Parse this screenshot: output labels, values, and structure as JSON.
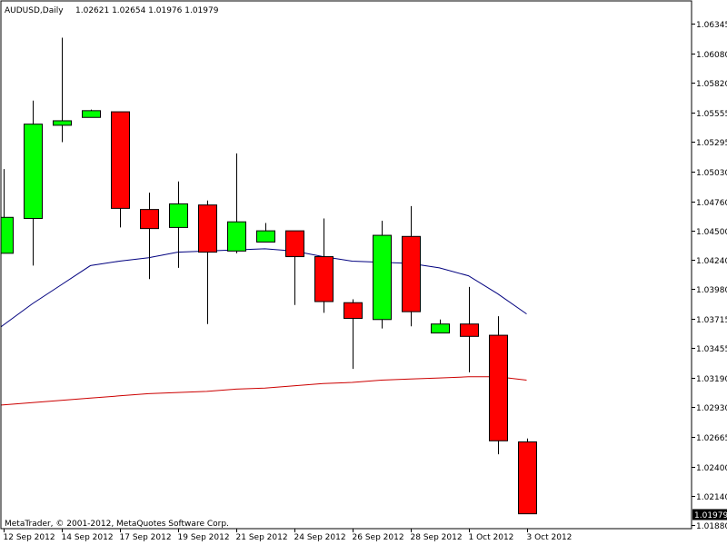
{
  "header": {
    "symbol": "AUDUSD,Daily",
    "ohlc": "1.02621 1.02654 1.01976 1.01979"
  },
  "footer": {
    "copyright": "MetaTrader, © 2001-2012, MetaQuotes Software Corp."
  },
  "colors": {
    "bull": "#00ff00",
    "bear": "#ff0000",
    "ma_fast": "#00007f",
    "ma_slow": "#cc0000",
    "frame": "#000000",
    "price_box_bg": "#000000",
    "price_box_text": "#ffffff"
  },
  "chart_data": {
    "type": "candlestick",
    "symbol": "AUDUSD",
    "timeframe": "Daily",
    "ylim": [
      1.0188,
      1.0641
    ],
    "y_ticks": [
      1.0188,
      1.0214,
      1.024,
      1.02665,
      1.0293,
      1.0319,
      1.03455,
      1.03715,
      1.0398,
      1.0424,
      1.045,
      1.0476,
      1.0503,
      1.05295,
      1.05555,
      1.0582,
      1.0608,
      1.06345
    ],
    "y_tick_labels": [
      "1.01880",
      "1.02140",
      "1.02400",
      "1.02665",
      "1.02930",
      "1.03190",
      "1.03455",
      "1.03715",
      "1.03980",
      "1.04240",
      "1.04500",
      "1.04760",
      "1.05030",
      "1.05295",
      "1.05555",
      "1.05820",
      "1.06080",
      "1.06345"
    ],
    "x_labels": [
      {
        "label": "12 Sep 2012",
        "index": 0
      },
      {
        "label": "14 Sep 2012",
        "index": 2
      },
      {
        "label": "17 Sep 2012",
        "index": 4
      },
      {
        "label": "19 Sep 2012",
        "index": 6
      },
      {
        "label": "21 Sep 2012",
        "index": 8
      },
      {
        "label": "24 Sep 2012",
        "index": 10
      },
      {
        "label": "26 Sep 2012",
        "index": 12
      },
      {
        "label": "28 Sep 2012",
        "index": 14
      },
      {
        "label": "1 Oct 2012",
        "index": 16
      },
      {
        "label": "3 Oct 2012",
        "index": 18
      }
    ],
    "candles": [
      {
        "open": 1.043,
        "high": 1.0505,
        "low": 1.043,
        "close": 1.0462
      },
      {
        "open": 1.0461,
        "high": 1.0566,
        "low": 1.0419,
        "close": 1.0545
      },
      {
        "open": 1.0544,
        "high": 1.0622,
        "low": 1.0529,
        "close": 1.0548
      },
      {
        "open": 1.0551,
        "high": 1.0558,
        "low": 1.0551,
        "close": 1.0557
      },
      {
        "open": 1.0556,
        "high": 1.0556,
        "low": 1.0453,
        "close": 1.047
      },
      {
        "open": 1.0469,
        "high": 1.0484,
        "low": 1.0407,
        "close": 1.0452
      },
      {
        "open": 1.0453,
        "high": 1.0494,
        "low": 1.0417,
        "close": 1.0474
      },
      {
        "open": 1.0473,
        "high": 1.0477,
        "low": 1.0367,
        "close": 1.0431
      },
      {
        "open": 1.0432,
        "high": 1.0519,
        "low": 1.043,
        "close": 1.0458
      },
      {
        "open": 1.044,
        "high": 1.0457,
        "low": 1.044,
        "close": 1.045
      },
      {
        "open": 1.045,
        "high": 1.045,
        "low": 1.0384,
        "close": 1.0427
      },
      {
        "open": 1.0427,
        "high": 1.0461,
        "low": 1.0377,
        "close": 1.0387
      },
      {
        "open": 1.0386,
        "high": 1.0389,
        "low": 1.0327,
        "close": 1.0372
      },
      {
        "open": 1.0371,
        "high": 1.0459,
        "low": 1.0363,
        "close": 1.0446
      },
      {
        "open": 1.0445,
        "high": 1.0472,
        "low": 1.0365,
        "close": 1.0378
      },
      {
        "open": 1.0359,
        "high": 1.0371,
        "low": 1.0359,
        "close": 1.0367
      },
      {
        "open": 1.0367,
        "high": 1.04,
        "low": 1.0324,
        "close": 1.0356
      },
      {
        "open": 1.0357,
        "high": 1.0374,
        "low": 1.0251,
        "close": 1.0263
      },
      {
        "open": 1.0262,
        "high": 1.0265,
        "low": 1.0198,
        "close": 1.0198
      }
    ],
    "ma_fast": [
      {
        "x": 0,
        "y": 1.0366
      },
      {
        "x": 1,
        "y": 1.0385
      },
      {
        "x": 2,
        "y": 1.0402
      },
      {
        "x": 3,
        "y": 1.0419
      },
      {
        "x": 4,
        "y": 1.0423
      },
      {
        "x": 5,
        "y": 1.0426
      },
      {
        "x": 6,
        "y": 1.0431
      },
      {
        "x": 7,
        "y": 1.0432
      },
      {
        "x": 8,
        "y": 1.0433
      },
      {
        "x": 9,
        "y": 1.0434
      },
      {
        "x": 10,
        "y": 1.0432
      },
      {
        "x": 11,
        "y": 1.0427
      },
      {
        "x": 12,
        "y": 1.0423
      },
      {
        "x": 13,
        "y": 1.0422
      },
      {
        "x": 14,
        "y": 1.0421
      },
      {
        "x": 15,
        "y": 1.0417
      },
      {
        "x": 16,
        "y": 1.041
      },
      {
        "x": 17,
        "y": 1.0394
      },
      {
        "x": 18,
        "y": 1.0376
      }
    ],
    "ma_slow": [
      {
        "x": 0,
        "y": 1.0295
      },
      {
        "x": 1,
        "y": 1.0297
      },
      {
        "x": 2,
        "y": 1.0299
      },
      {
        "x": 3,
        "y": 1.0301
      },
      {
        "x": 4,
        "y": 1.0303
      },
      {
        "x": 5,
        "y": 1.0305
      },
      {
        "x": 6,
        "y": 1.0306
      },
      {
        "x": 7,
        "y": 1.0307
      },
      {
        "x": 8,
        "y": 1.0309
      },
      {
        "x": 9,
        "y": 1.031
      },
      {
        "x": 10,
        "y": 1.0312
      },
      {
        "x": 11,
        "y": 1.0314
      },
      {
        "x": 12,
        "y": 1.0315
      },
      {
        "x": 13,
        "y": 1.0317
      },
      {
        "x": 14,
        "y": 1.0318
      },
      {
        "x": 15,
        "y": 1.0319
      },
      {
        "x": 16,
        "y": 1.032
      },
      {
        "x": 17,
        "y": 1.032
      },
      {
        "x": 18,
        "y": 1.0317
      }
    ],
    "current_price": 1.01979,
    "current_price_label": "1.01979"
  }
}
